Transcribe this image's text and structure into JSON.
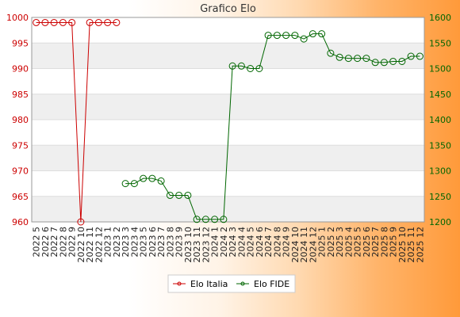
{
  "chart_data": {
    "type": "line",
    "title": "Grafico Elo",
    "categories": [
      "2022 5",
      "2022 6",
      "2022 7",
      "2022 8",
      "2022 9",
      "2022 10",
      "2022 11",
      "2022 12",
      "2023 1",
      "2023 2",
      "2023 3",
      "2023 4",
      "2023 5",
      "2023 6",
      "2023 7",
      "2023 8",
      "2023 9",
      "2023 10",
      "2023 11",
      "2023 12",
      "2024 1",
      "2024 2",
      "2024 3",
      "2024 4",
      "2024 5",
      "2024 6",
      "2024 7",
      "2024 8",
      "2024 9",
      "2024 10",
      "2024 11",
      "2024 12",
      "2025 1",
      "2025 2",
      "2025 3",
      "2025 4",
      "2025 5",
      "2025 6",
      "2025 7",
      "2025 8",
      "2025 9",
      "2025 10",
      "2025 11",
      "2025 12"
    ],
    "y_left": {
      "min": 960,
      "max": 1000,
      "ticks": [
        960,
        965,
        970,
        975,
        980,
        985,
        990,
        995,
        1000
      ],
      "color": "#cc0000"
    },
    "y_right": {
      "min": 1200,
      "max": 1600,
      "ticks": [
        1200,
        1250,
        1300,
        1350,
        1400,
        1450,
        1500,
        1550,
        1600
      ],
      "color": "#006600"
    },
    "grid": true,
    "legend_position": "bottom",
    "series": [
      {
        "name": "Elo Italia",
        "axis": "left",
        "color": "#cc0000",
        "values": [
          999,
          999,
          999,
          999,
          999,
          960,
          999,
          999,
          999,
          999,
          null,
          null,
          null,
          null,
          null,
          null,
          null,
          null,
          null,
          null,
          null,
          null,
          null,
          null,
          null,
          null,
          null,
          null,
          null,
          null,
          null,
          null,
          null,
          null,
          null,
          null,
          null,
          null,
          null,
          null,
          null,
          null,
          null,
          null
        ]
      },
      {
        "name": "Elo FIDE",
        "axis": "right",
        "color": "#006600",
        "values": [
          null,
          null,
          null,
          null,
          null,
          null,
          null,
          null,
          null,
          null,
          1275,
          1275,
          1285,
          1285,
          1280,
          1252,
          1252,
          1252,
          1205,
          1205,
          1205,
          1205,
          1505,
          1505,
          1500,
          1500,
          1565,
          1565,
          1565,
          1565,
          1558,
          1568,
          1568,
          1530,
          1522,
          1520,
          1520,
          1520,
          1512,
          1512,
          1514,
          1514,
          1524,
          1524
        ]
      }
    ]
  }
}
